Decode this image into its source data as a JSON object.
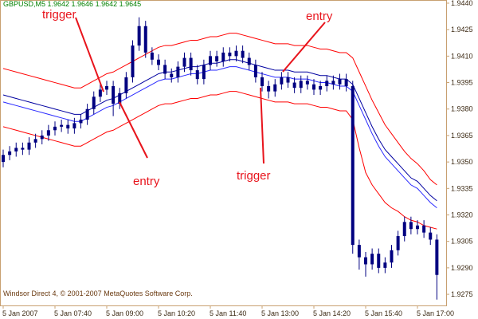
{
  "chart_data": {
    "type": "candlestick",
    "title": "GBPUSD,M5  1.9642 1.9646 1.9642 1.9645",
    "footer": "Windsor Direct 4, © 2001-2007 MetaQuotes Software Corp.",
    "annotations": [
      "trigger",
      "entry",
      "entry",
      "trigger"
    ],
    "color": "#000080",
    "categories": [
      "5 Jan 2007",
      null,
      null,
      null,
      null,
      null,
      null,
      null,
      "5 Jan 07:40",
      null,
      null,
      null,
      null,
      null,
      null,
      null,
      "5 Jan 09:00",
      null,
      null,
      null,
      null,
      null,
      null,
      null,
      "5 Jan 10:20",
      null,
      null,
      null,
      null,
      null,
      null,
      null,
      "5 Jan 11:40",
      null,
      null,
      null,
      null,
      null,
      null,
      null,
      "5 Jan 13:00",
      null,
      null,
      null,
      null,
      null,
      null,
      null,
      "5 Jan 14:20",
      null,
      null,
      null,
      null,
      null,
      null,
      null,
      "5 Jan 15:40",
      null,
      null,
      null,
      null,
      null,
      null,
      null,
      "5 Jan 17:00",
      null,
      null,
      null
    ],
    "open": [
      1.935,
      1.9354,
      1.9356,
      1.9358,
      1.9357,
      1.9361,
      1.9363,
      1.9365,
      1.9368,
      1.937,
      1.9371,
      1.9369,
      1.9372,
      1.9374,
      1.938,
      1.9387,
      1.9391,
      1.9393,
      1.9383,
      1.9389,
      1.9398,
      1.9416,
      1.9427,
      1.9412,
      1.9408,
      1.9405,
      1.94,
      1.9398,
      1.9404,
      1.9409,
      1.9402,
      1.9397,
      1.9405,
      1.941,
      1.9407,
      1.9412,
      1.941,
      1.9413,
      1.9409,
      1.9405,
      1.9398,
      1.9393,
      1.939,
      1.9394,
      1.9398,
      1.9395,
      1.9392,
      1.9396,
      1.9394,
      1.9391,
      1.9393,
      1.9396,
      1.9394,
      1.9397,
      1.9393,
      1.9303,
      1.9296,
      1.9292,
      1.9298,
      1.929,
      1.9293,
      1.93,
      1.9308,
      1.9316,
      1.9312,
      1.9314,
      1.931,
      1.9306
    ],
    "high": [
      1.9357,
      1.9359,
      1.9361,
      1.9361,
      1.9364,
      1.9366,
      1.9368,
      1.9371,
      1.9373,
      1.9374,
      1.9374,
      1.9375,
      1.9377,
      1.9383,
      1.939,
      1.9394,
      1.9396,
      1.9396,
      1.9392,
      1.9401,
      1.9419,
      1.9432,
      1.943,
      1.9415,
      1.9411,
      1.9408,
      1.9403,
      1.9407,
      1.9412,
      1.9412,
      1.9405,
      1.9408,
      1.9413,
      1.9413,
      1.9415,
      1.9415,
      1.9416,
      1.9416,
      1.9412,
      1.9408,
      1.9401,
      1.9396,
      1.9397,
      1.9401,
      1.9401,
      1.9398,
      1.9399,
      1.9399,
      1.9397,
      1.9396,
      1.9399,
      1.9399,
      1.94,
      1.94,
      1.9396,
      1.9306,
      1.9299,
      1.9301,
      1.9301,
      1.9296,
      1.9303,
      1.9311,
      1.9319,
      1.9319,
      1.9317,
      1.9317,
      1.9313,
      1.9309
    ],
    "low": [
      1.9347,
      1.9351,
      1.9353,
      1.9354,
      1.9354,
      1.9358,
      1.936,
      1.9362,
      1.9365,
      1.9367,
      1.9366,
      1.9366,
      1.9369,
      1.9371,
      1.9377,
      1.9384,
      1.9388,
      1.9376,
      1.938,
      1.9386,
      1.9395,
      1.9413,
      1.9409,
      1.9405,
      1.9402,
      1.9397,
      1.9395,
      1.9395,
      1.9401,
      1.9399,
      1.9394,
      1.9394,
      1.9402,
      1.9404,
      1.9404,
      1.9407,
      1.9407,
      1.9406,
      1.9402,
      1.9395,
      1.939,
      1.9386,
      1.9387,
      1.9391,
      1.9392,
      1.9389,
      1.9389,
      1.9391,
      1.9388,
      1.9388,
      1.939,
      1.9391,
      1.9391,
      1.939,
      1.9298,
      1.9289,
      1.9285,
      1.9289,
      1.9287,
      1.9287,
      1.929,
      1.9297,
      1.9305,
      1.9309,
      1.9309,
      1.9307,
      1.9303,
      1.9272
    ],
    "close": [
      1.9354,
      1.9356,
      1.9358,
      1.9357,
      1.9361,
      1.9363,
      1.9365,
      1.9368,
      1.937,
      1.9371,
      1.9369,
      1.9372,
      1.9374,
      1.938,
      1.9387,
      1.9391,
      1.9393,
      1.9383,
      1.9389,
      1.9398,
      1.9416,
      1.9427,
      1.9412,
      1.9408,
      1.9405,
      1.94,
      1.9398,
      1.9404,
      1.9409,
      1.9402,
      1.9397,
      1.9405,
      1.941,
      1.9407,
      1.9412,
      1.941,
      1.9413,
      1.9409,
      1.9405,
      1.9398,
      1.9393,
      1.939,
      1.9394,
      1.9398,
      1.9395,
      1.9392,
      1.9396,
      1.9394,
      1.9391,
      1.9393,
      1.9396,
      1.9394,
      1.9397,
      1.9393,
      1.9303,
      1.9296,
      1.9292,
      1.9298,
      1.929,
      1.9293,
      1.93,
      1.9308,
      1.9316,
      1.9312,
      1.9314,
      1.931,
      1.9306,
      1.9286
    ],
    "series": [
      {
        "color": "#ff0000",
        "values": [
          1.9403,
          1.9402,
          1.9401,
          1.94,
          1.9399,
          1.9398,
          1.9397,
          1.9396,
          1.9395,
          1.9394,
          1.9393,
          1.9392,
          1.9392,
          1.9394,
          1.9396,
          1.9398,
          1.94,
          1.9401,
          1.9403,
          1.9405,
          1.9407,
          1.9409,
          1.9411,
          1.9413,
          1.9415,
          1.9416,
          1.9416,
          1.9417,
          1.9418,
          1.9419,
          1.9419,
          1.942,
          1.9421,
          1.9421,
          1.9422,
          1.9423,
          1.9423,
          1.9422,
          1.9421,
          1.942,
          1.9419,
          1.9418,
          1.9417,
          1.9417,
          1.9417,
          1.9416,
          1.9416,
          1.9416,
          1.9415,
          1.9414,
          1.9414,
          1.9413,
          1.9412,
          1.9412,
          1.9409,
          1.9401,
          1.9393,
          1.9385,
          1.9378,
          1.9371,
          1.9366,
          1.9361,
          1.9356,
          1.9352,
          1.9349,
          1.9345,
          1.934,
          1.9337
        ]
      },
      {
        "color": "#0000a0",
        "values": [
          1.9388,
          1.9387,
          1.9386,
          1.9385,
          1.9384,
          1.9383,
          1.9382,
          1.9381,
          1.938,
          1.9379,
          1.9378,
          1.9377,
          1.9377,
          1.9379,
          1.9381,
          1.9383,
          1.9385,
          1.9386,
          1.9388,
          1.939,
          1.9392,
          1.9394,
          1.9396,
          1.9398,
          1.94,
          1.9401,
          1.9401,
          1.9402,
          1.9403,
          1.9404,
          1.9404,
          1.9405,
          1.9406,
          1.9406,
          1.9407,
          1.9408,
          1.9408,
          1.9407,
          1.9406,
          1.9405,
          1.9404,
          1.9403,
          1.9402,
          1.9402,
          1.9402,
          1.9401,
          1.9401,
          1.9401,
          1.94,
          1.9399,
          1.9399,
          1.9398,
          1.9397,
          1.9397,
          1.9394,
          1.9386,
          1.9378,
          1.937,
          1.9363,
          1.9357,
          1.9353,
          1.9349,
          1.9345,
          1.9341,
          1.9339,
          1.9335,
          1.9331,
          1.9328
        ]
      },
      {
        "color": "#2a2aff",
        "values": [
          1.9384,
          1.9383,
          1.9382,
          1.9381,
          1.938,
          1.9379,
          1.9378,
          1.9377,
          1.9376,
          1.9375,
          1.9374,
          1.9373,
          1.9373,
          1.9375,
          1.9377,
          1.9379,
          1.9381,
          1.9382,
          1.9384,
          1.9386,
          1.9388,
          1.939,
          1.9392,
          1.9394,
          1.9396,
          1.9397,
          1.9397,
          1.9398,
          1.9399,
          1.94,
          1.94,
          1.9401,
          1.9402,
          1.9402,
          1.9403,
          1.9404,
          1.9404,
          1.9403,
          1.9402,
          1.9401,
          1.94,
          1.9399,
          1.9398,
          1.9398,
          1.9398,
          1.9397,
          1.9397,
          1.9397,
          1.9396,
          1.9395,
          1.9395,
          1.9394,
          1.9393,
          1.9393,
          1.939,
          1.9382,
          1.9374,
          1.9366,
          1.9359,
          1.9353,
          1.9349,
          1.9345,
          1.9341,
          1.9337,
          1.9335,
          1.9331,
          1.9327,
          1.9324
        ]
      },
      {
        "color": "#ff0000",
        "values": [
          1.937,
          1.9369,
          1.9368,
          1.9367,
          1.9366,
          1.9365,
          1.9364,
          1.9363,
          1.9362,
          1.9361,
          1.936,
          1.9359,
          1.9359,
          1.9361,
          1.9363,
          1.9365,
          1.9367,
          1.9368,
          1.937,
          1.9372,
          1.9374,
          1.9376,
          1.9378,
          1.938,
          1.9382,
          1.9383,
          1.9383,
          1.9384,
          1.9385,
          1.9386,
          1.9386,
          1.9387,
          1.9388,
          1.9388,
          1.9389,
          1.939,
          1.939,
          1.9389,
          1.9388,
          1.9387,
          1.9386,
          1.9385,
          1.9384,
          1.9384,
          1.9384,
          1.9383,
          1.9383,
          1.9383,
          1.9382,
          1.9381,
          1.9381,
          1.938,
          1.9379,
          1.9379,
          1.9374,
          1.9358,
          1.9344,
          1.9337,
          1.9332,
          1.9327,
          1.9324,
          1.9322,
          1.9319,
          1.9317,
          1.9316,
          1.9314,
          1.9313,
          1.9312
        ]
      }
    ],
    "ylim": [
      1.92687,
      1.94418
    ],
    "yticks": [
      {
        "value": 1.944,
        "label": "1.9440"
      },
      1.9425,
      {
        "value": 1.941,
        "label": "1.9410"
      },
      1.9395,
      {
        "value": 1.938,
        "label": "1.9380"
      },
      1.9365,
      {
        "value": 1.935,
        "label": "1.9350"
      },
      1.9335,
      {
        "value": 1.932,
        "label": "1.9320"
      },
      1.9305,
      {
        "value": 1.929,
        "label": "1.9290"
      },
      1.9275
    ]
  }
}
